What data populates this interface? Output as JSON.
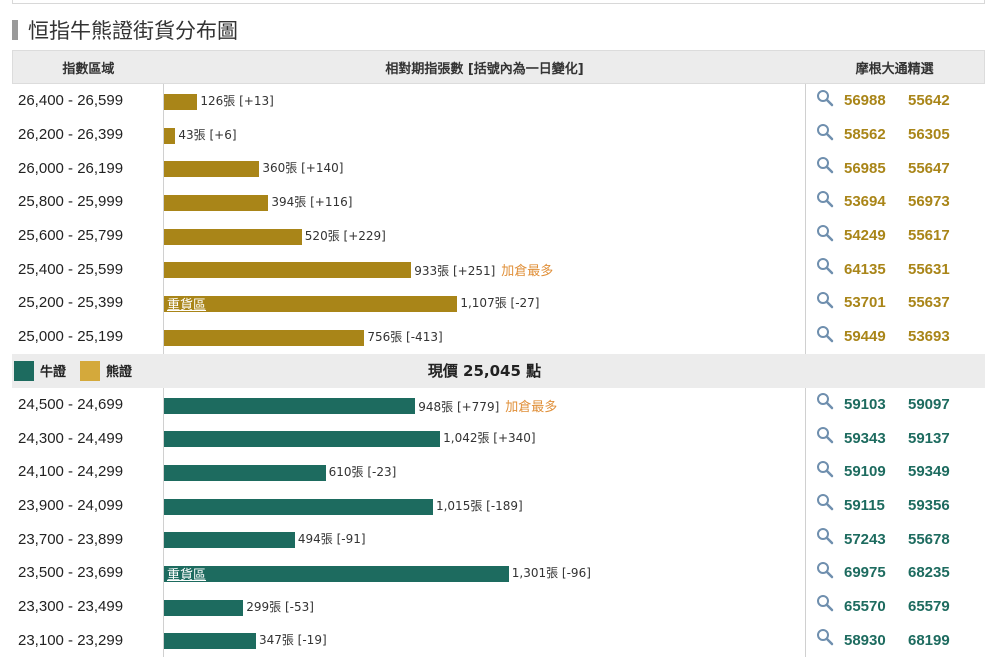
{
  "page": {
    "title": "恒指牛熊證街貨分布圖"
  },
  "header": {
    "range": "指數區域",
    "count": "相對期指張數 [括號內為一日變化]",
    "picks": "摩根大通精選"
  },
  "legend": {
    "bull": "牛證",
    "bear": "熊證"
  },
  "current_price": "現價 25,045 點",
  "colors": {
    "bear": "#a98518",
    "bull": "#1d6b5f",
    "bear_legend": "#d4a93b",
    "bull_legend": "#1d6b5f",
    "note": "#e0903a",
    "bear_code": "#a98518",
    "bull_code": "#1d6b5f"
  },
  "labels": {
    "heavy": "重貨區",
    "most_added": "加倉最多"
  },
  "chart_data": {
    "type": "bar",
    "orientation": "horizontal",
    "title": "恒指牛熊證街貨分布圖",
    "unit": "張",
    "bear": [
      {
        "range": "26,400 - 26,599",
        "value": 126,
        "label": "126張 [+13]",
        "change": 13,
        "codes": [
          "56988",
          "55642"
        ]
      },
      {
        "range": "26,200 - 26,399",
        "value": 43,
        "label": "43張 [+6]",
        "change": 6,
        "codes": [
          "58562",
          "56305"
        ]
      },
      {
        "range": "26,000 - 26,199",
        "value": 360,
        "label": "360張 [+140]",
        "change": 140,
        "codes": [
          "56985",
          "55647"
        ]
      },
      {
        "range": "25,800 - 25,999",
        "value": 394,
        "label": "394張 [+116]",
        "change": 116,
        "codes": [
          "53694",
          "56973"
        ]
      },
      {
        "range": "25,600 - 25,799",
        "value": 520,
        "label": "520張 [+229]",
        "change": 229,
        "codes": [
          "54249",
          "55617"
        ]
      },
      {
        "range": "25,400 - 25,599",
        "value": 933,
        "label": "933張 [+251]",
        "change": 251,
        "note": "加倉最多",
        "codes": [
          "64135",
          "55631"
        ]
      },
      {
        "range": "25,200 - 25,399",
        "value": 1107,
        "label": "1,107張 [-27]",
        "change": -27,
        "heavy": true,
        "codes": [
          "53701",
          "55637"
        ]
      },
      {
        "range": "25,000 - 25,199",
        "value": 756,
        "label": "756張 [-413]",
        "change": -413,
        "codes": [
          "59449",
          "53693"
        ]
      }
    ],
    "bull": [
      {
        "range": "24,500 - 24,699",
        "value": 948,
        "label": "948張 [+779]",
        "change": 779,
        "note": "加倉最多",
        "codes": [
          "59103",
          "59097"
        ]
      },
      {
        "range": "24,300 - 24,499",
        "value": 1042,
        "label": "1,042張 [+340]",
        "change": 340,
        "codes": [
          "59343",
          "59137"
        ]
      },
      {
        "range": "24,100 - 24,299",
        "value": 610,
        "label": "610張 [-23]",
        "change": -23,
        "codes": [
          "59109",
          "59349"
        ]
      },
      {
        "range": "23,900 - 24,099",
        "value": 1015,
        "label": "1,015張 [-189]",
        "change": -189,
        "codes": [
          "59115",
          "59356"
        ]
      },
      {
        "range": "23,700 - 23,899",
        "value": 494,
        "label": "494張 [-91]",
        "change": -91,
        "codes": [
          "57243",
          "55678"
        ]
      },
      {
        "range": "23,500 - 23,699",
        "value": 1301,
        "label": "1,301張 [-96]",
        "change": -96,
        "heavy": true,
        "codes": [
          "69975",
          "68235"
        ]
      },
      {
        "range": "23,300 - 23,499",
        "value": 299,
        "label": "299張 [-53]",
        "change": -53,
        "codes": [
          "65570",
          "65579"
        ]
      },
      {
        "range": "23,100 - 23,299",
        "value": 347,
        "label": "347張 [-19]",
        "change": -19,
        "codes": [
          "58930",
          "68199"
        ]
      }
    ]
  }
}
